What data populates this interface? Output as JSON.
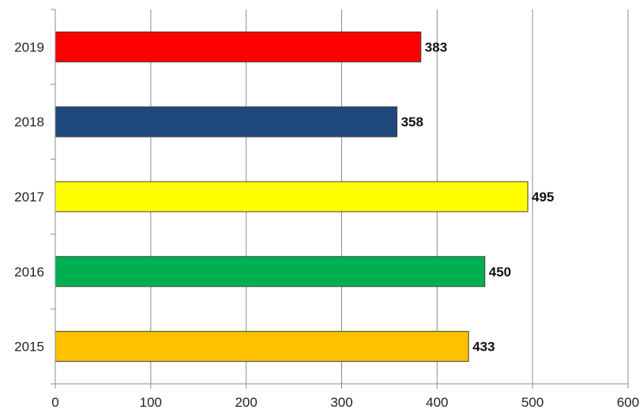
{
  "chart_data": {
    "type": "bar",
    "orientation": "horizontal",
    "categories": [
      "2015",
      "2016",
      "2017",
      "2018",
      "2019"
    ],
    "values": [
      433,
      450,
      495,
      358,
      383
    ],
    "data_labels": [
      "433",
      "450",
      "495",
      "358",
      "383"
    ],
    "bar_colors": [
      "#FFC000",
      "#00B050",
      "#FFFF00",
      "#1F497D",
      "#FF0000"
    ],
    "xlim": [
      0,
      600
    ],
    "x_ticks": [
      0,
      100,
      200,
      300,
      400,
      500,
      600
    ],
    "x_tick_labels": [
      "0",
      "100",
      "200",
      "300",
      "400",
      "500",
      "600"
    ],
    "grid": true,
    "legend": "none",
    "title": "",
    "xlabel": "",
    "ylabel": ""
  }
}
